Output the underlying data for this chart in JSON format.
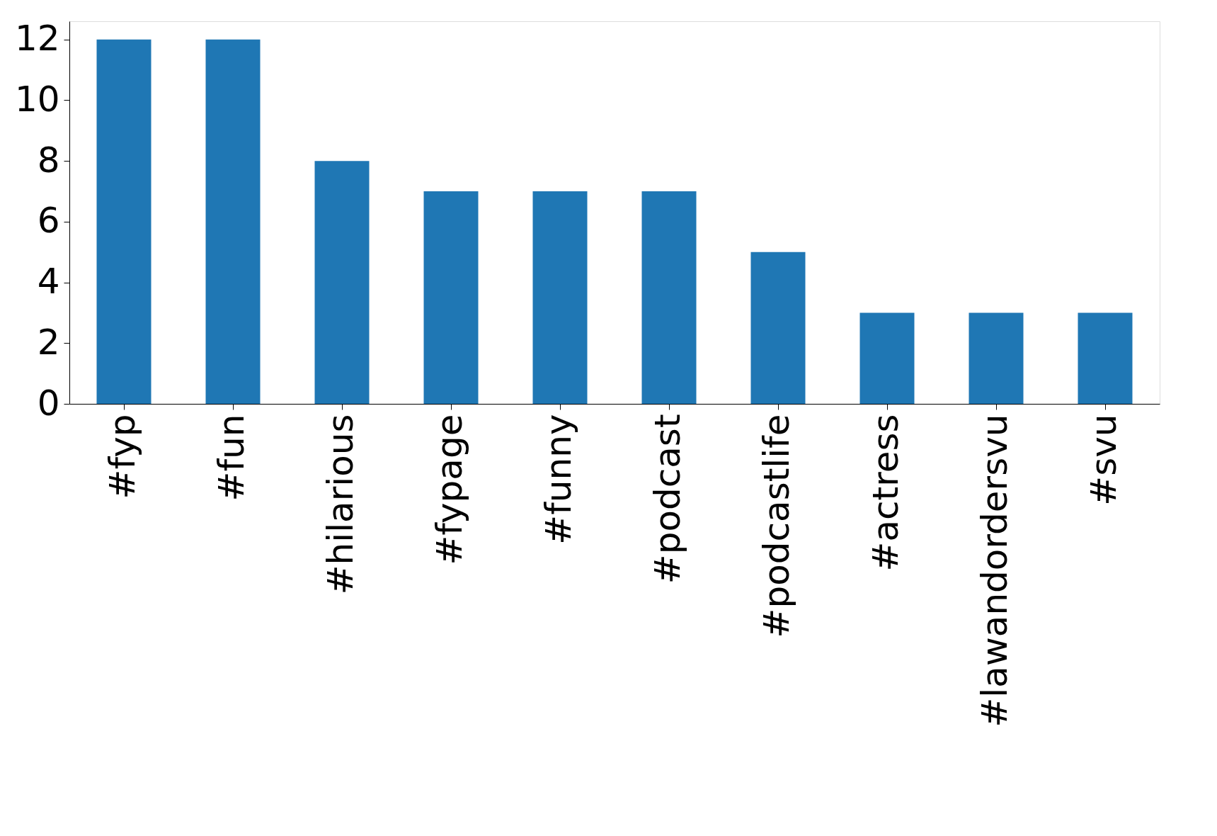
{
  "chart_data": {
    "type": "bar",
    "categories": [
      "#fyp",
      "#fun",
      "#hilarious",
      "#fypage",
      "#funny",
      "#podcast",
      "#podcastlife",
      "#actress",
      "#lawandordersvu",
      "#svu"
    ],
    "values": [
      12,
      12,
      8,
      7,
      7,
      7,
      5,
      3,
      3,
      3
    ],
    "color": "#1f77b4",
    "ylim": [
      0,
      12.6
    ],
    "yticks": [
      0,
      2,
      4,
      6,
      8,
      10,
      12
    ],
    "grid": false
  }
}
